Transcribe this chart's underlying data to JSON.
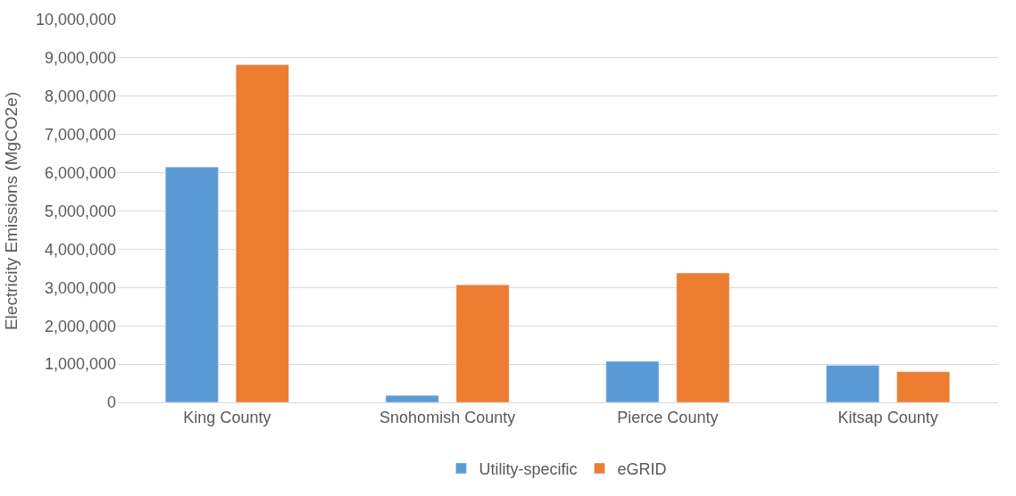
{
  "chart_data": {
    "type": "bar",
    "ylabel": "Electricity Emissions (MgCO2e)",
    "categories": [
      "King County",
      "Snohomish County",
      "Pierce County",
      "Kitsap County"
    ],
    "series": [
      {
        "name": "Utility-specific",
        "color": "#5b9bd5",
        "values": [
          6150000,
          180000,
          1070000,
          970000
        ]
      },
      {
        "name": "eGRID",
        "color": "#ed7d31",
        "values": [
          8820000,
          3070000,
          3380000,
          800000
        ]
      }
    ],
    "ylim": [
      0,
      10000000
    ],
    "yticks": [
      {
        "value": 0,
        "label": "0"
      },
      {
        "value": 1000000,
        "label": "1,000,000"
      },
      {
        "value": 2000000,
        "label": "2,000,000"
      },
      {
        "value": 3000000,
        "label": "3,000,000"
      },
      {
        "value": 4000000,
        "label": "4,000,000"
      },
      {
        "value": 5000000,
        "label": "5,000,000"
      },
      {
        "value": 6000000,
        "label": "6,000,000"
      },
      {
        "value": 7000000,
        "label": "7,000,000"
      },
      {
        "value": 8000000,
        "label": "8,000,000"
      },
      {
        "value": 9000000,
        "label": "9,000,000"
      },
      {
        "value": 10000000,
        "label": "10,000,000"
      }
    ],
    "grid": "y",
    "legend": "bottom"
  }
}
